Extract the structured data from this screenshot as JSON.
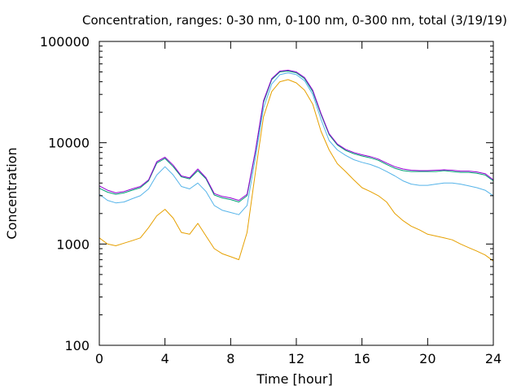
{
  "chart_data": {
    "type": "line",
    "title": "Concentration, ranges: 0-30 nm, 0-100 nm, 0-300 nm, total (3/19/19)",
    "xlabel": "Time [hour]",
    "ylabel": "Concentration",
    "xlim": [
      0,
      24
    ],
    "ylim": [
      100,
      100000
    ],
    "yscale": "log",
    "xticks": [
      0,
      4,
      8,
      12,
      16,
      20,
      24
    ],
    "xtick_labels": [
      "0",
      "4",
      "8",
      "12",
      "16",
      "20",
      "24"
    ],
    "yticks": [
      100,
      1000,
      10000,
      100000
    ],
    "ytick_labels": [
      "100",
      "1000",
      "10000",
      "100000"
    ],
    "grid": false,
    "legend": "none",
    "x": [
      0,
      0.5,
      1,
      1.5,
      2,
      2.5,
      3,
      3.5,
      4,
      4.5,
      5,
      5.5,
      6,
      6.5,
      7,
      7.5,
      8,
      8.5,
      9,
      9.5,
      10,
      10.5,
      11,
      11.5,
      12,
      12.5,
      13,
      13.5,
      14,
      14.5,
      15,
      15.5,
      16,
      16.5,
      17,
      17.5,
      18,
      18.5,
      19,
      19.5,
      20,
      20.5,
      21,
      21.5,
      22,
      22.5,
      23,
      23.5,
      24
    ],
    "series": [
      {
        "color": "#e6a000",
        "values": [
          1150,
          1000,
          960,
          1020,
          1080,
          1150,
          1450,
          1900,
          2200,
          1800,
          1300,
          1250,
          1600,
          1200,
          900,
          800,
          750,
          700,
          1300,
          5000,
          18000,
          32000,
          40000,
          42000,
          39000,
          33000,
          24000,
          13000,
          8500,
          6200,
          5200,
          4300,
          3600,
          3300,
          3000,
          2600,
          2000,
          1700,
          1500,
          1380,
          1250,
          1200,
          1150,
          1100,
          1000,
          920,
          850,
          780,
          680
        ]
      },
      {
        "color": "#56b4e9",
        "values": [
          3100,
          2700,
          2550,
          2600,
          2800,
          3000,
          3500,
          4800,
          5800,
          4800,
          3700,
          3500,
          4000,
          3300,
          2400,
          2150,
          2050,
          1950,
          2400,
          7000,
          22000,
          38000,
          47000,
          49000,
          47000,
          41000,
          30000,
          17000,
          10500,
          8500,
          7500,
          6800,
          6400,
          6100,
          5700,
          5200,
          4700,
          4200,
          3900,
          3800,
          3800,
          3900,
          4000,
          4000,
          3900,
          3750,
          3600,
          3400,
          3000
        ]
      },
      {
        "color": "#009e73",
        "values": [
          3550,
          3250,
          3100,
          3200,
          3400,
          3600,
          4200,
          6300,
          7000,
          5800,
          4600,
          4400,
          5300,
          4400,
          3050,
          2850,
          2750,
          2600,
          3000,
          8000,
          25000,
          42000,
          50000,
          51000,
          49000,
          43000,
          32000,
          19000,
          12000,
          9500,
          8400,
          7800,
          7400,
          7100,
          6700,
          6100,
          5600,
          5300,
          5200,
          5200,
          5200,
          5200,
          5300,
          5200,
          5100,
          5100,
          5000,
          4800,
          4200
        ]
      },
      {
        "color": "#9400d3",
        "values": [
          3750,
          3400,
          3200,
          3300,
          3500,
          3700,
          4300,
          6500,
          7200,
          6000,
          4700,
          4500,
          5500,
          4500,
          3150,
          2950,
          2850,
          2700,
          3100,
          8200,
          26000,
          43000,
          51000,
          52000,
          50000,
          44000,
          33000,
          19500,
          12300,
          9700,
          8600,
          8000,
          7600,
          7300,
          6900,
          6300,
          5800,
          5500,
          5350,
          5300,
          5300,
          5350,
          5400,
          5350,
          5250,
          5250,
          5150,
          4950,
          4300
        ]
      }
    ]
  }
}
